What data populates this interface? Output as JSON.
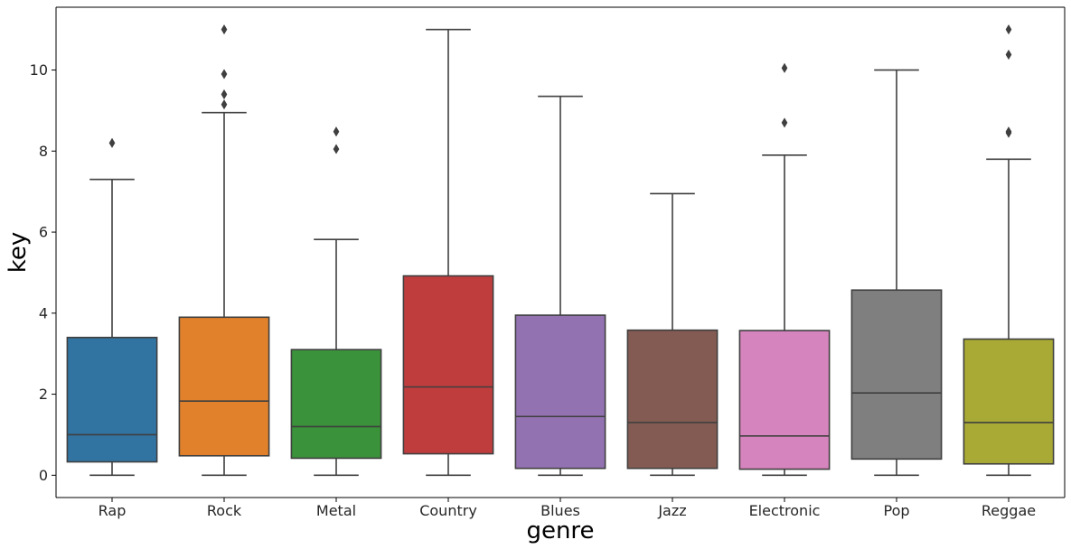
{
  "chart_data": {
    "type": "box",
    "xlabel": "genre",
    "ylabel": "key",
    "ylim": [
      -0.55,
      11.55
    ],
    "yticks": [
      0,
      2,
      4,
      6,
      8,
      10
    ],
    "grid": false,
    "legend": "none",
    "categories": [
      "Rap",
      "Rock",
      "Metal",
      "Country",
      "Blues",
      "Jazz",
      "Electronic",
      "Pop",
      "Reggae"
    ],
    "colors": [
      "#3274a1",
      "#e1812c",
      "#3a923a",
      "#c03d3e",
      "#9372b2",
      "#845b53",
      "#d684bd",
      "#7f7f7f",
      "#a9aa35"
    ],
    "boxes": [
      {
        "whislo": 0,
        "q1": 0.33,
        "med": 1.0,
        "q3": 3.4,
        "whishi": 7.3,
        "fliers": [
          8.2
        ]
      },
      {
        "whislo": 0,
        "q1": 0.48,
        "med": 1.83,
        "q3": 3.9,
        "whishi": 8.95,
        "fliers": [
          9.15,
          9.4,
          9.9,
          11.0
        ]
      },
      {
        "whislo": 0,
        "q1": 0.42,
        "med": 1.2,
        "q3": 3.1,
        "whishi": 5.82,
        "fliers": [
          8.05,
          8.48
        ]
      },
      {
        "whislo": 0,
        "q1": 0.53,
        "med": 2.18,
        "q3": 4.92,
        "whishi": 11.0,
        "fliers": []
      },
      {
        "whislo": 0,
        "q1": 0.17,
        "med": 1.45,
        "q3": 3.95,
        "whishi": 9.35,
        "fliers": []
      },
      {
        "whislo": 0,
        "q1": 0.17,
        "med": 1.3,
        "q3": 3.58,
        "whishi": 6.95,
        "fliers": []
      },
      {
        "whislo": 0,
        "q1": 0.15,
        "med": 0.97,
        "q3": 3.57,
        "whishi": 7.9,
        "fliers": [
          8.7,
          10.05
        ]
      },
      {
        "whislo": 0,
        "q1": 0.4,
        "med": 2.03,
        "q3": 4.57,
        "whishi": 10.0,
        "fliers": []
      },
      {
        "whislo": 0,
        "q1": 0.28,
        "med": 1.3,
        "q3": 3.36,
        "whishi": 7.8,
        "fliers": [
          8.45,
          8.48,
          10.38,
          11.0
        ]
      }
    ]
  }
}
